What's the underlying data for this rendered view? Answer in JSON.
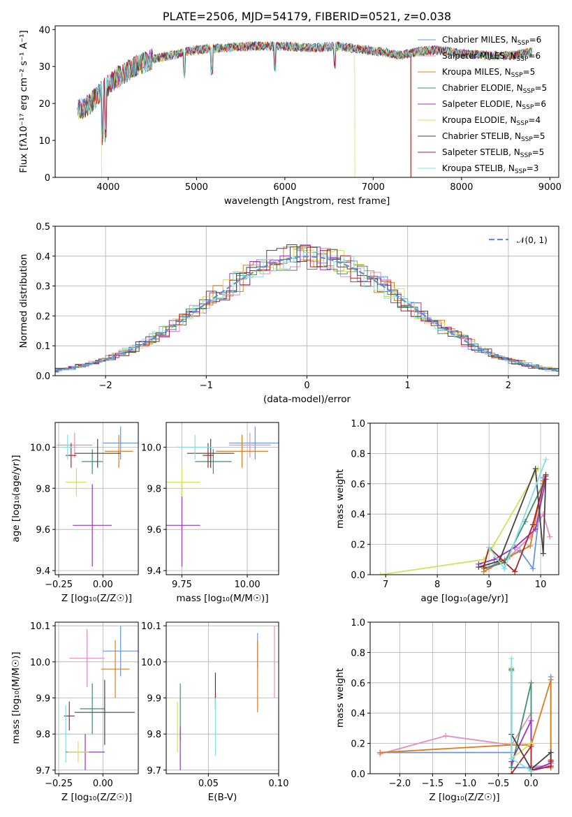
{
  "chart_data": [
    {
      "type": "line",
      "title": "PLATE=2506, MJD=54179, FIBERID=0521, z=0.038",
      "xlabel": "wavelength [Angstrom, rest frame]",
      "ylabel": "Flux [fλ10⁻¹⁷ erg cm⁻² s⁻¹ A⁻¹]",
      "xlim": [
        3400,
        9100
      ],
      "ylim": [
        0,
        41
      ],
      "xticks": [
        4000,
        5000,
        6000,
        7000,
        8000,
        9000
      ],
      "yticks": [
        0,
        10,
        20,
        30,
        40
      ],
      "legend_position": "top-right",
      "series": [
        {
          "name": "Chabrier MILES, N_SSP=6",
          "color": "#6495ed"
        },
        {
          "name": "Salpeter MILES, N_SSP=6",
          "color": "#e98bbf"
        },
        {
          "name": "Kroupa MILES, N_SSP=5",
          "color": "#e07b1a"
        },
        {
          "name": "Chabrier ELODIE, N_SSP=5",
          "color": "#3f8f6a"
        },
        {
          "name": "Salpeter ELODIE, N_SSP=6",
          "color": "#9b30c4"
        },
        {
          "name": "Kroupa ELODIE, N_SSP=4",
          "color": "#d4e157"
        },
        {
          "name": "Chabrier STELIB, N_SSP=5",
          "color": "#444444"
        },
        {
          "name": "Salpeter STELIB, N_SSP=5",
          "color": "#b22222"
        },
        {
          "name": "Kroupa STELIB, N_SSP=3",
          "color": "#7fe0e6"
        }
      ],
      "continuum": {
        "wavelength": [
          3650,
          3800,
          3950,
          4100,
          4300,
          4500,
          4700,
          5000,
          5300,
          5600,
          6000,
          6300,
          6600,
          6900,
          7100,
          7300,
          7500,
          7700,
          8000,
          8300,
          8600,
          8800
        ],
        "flux": [
          18,
          20,
          24,
          27,
          30,
          32,
          33,
          34.5,
          35,
          35.5,
          35.5,
          35,
          35.5,
          34.5,
          34,
          33,
          34,
          34.5,
          33.5,
          33,
          33,
          34
        ]
      }
    },
    {
      "type": "bar",
      "title": "",
      "xlabel": "(data-model)/error",
      "ylabel": "Normed distribution",
      "xlim": [
        -2.5,
        2.5
      ],
      "ylim": [
        0,
        0.5
      ],
      "xticks": [
        -2,
        -1,
        0,
        1,
        2
      ],
      "yticks": [
        0.0,
        0.1,
        0.2,
        0.3,
        0.4,
        0.5
      ],
      "legend_position": "top-right",
      "legend": [
        "𝒩(0, 1)"
      ],
      "reference_curve": {
        "name": "𝒩(0, 1)",
        "color": "#5b8fd9",
        "mean": 0,
        "sigma": 1
      },
      "histogram_bin_width": 0.1,
      "histogram_series_colors": [
        "#6495ed",
        "#e98bbf",
        "#e07b1a",
        "#3f8f6a",
        "#9b30c4",
        "#d4e157",
        "#444444",
        "#b22222",
        "#7fe0e6"
      ]
    },
    {
      "type": "scatter",
      "xlabel": "Z [log₁₀(Z/Z☉)]",
      "ylabel": "age  [log₁₀(age/yr)]",
      "xlim": [
        -0.27,
        0.2
      ],
      "ylim": [
        9.38,
        10.12
      ],
      "xticks": [
        -0.25,
        0.0
      ],
      "yticks": [
        9.4,
        9.6,
        9.8,
        10.0
      ],
      "points": [
        {
          "color": "#6495ed",
          "x": 0.1,
          "y": 10.02,
          "xerr": 0.1,
          "yerr": 0.08
        },
        {
          "color": "#e98bbf",
          "x": -0.16,
          "y": 10.01,
          "xerr": 0.1,
          "yerr": 0.06
        },
        {
          "color": "#e07b1a",
          "x": 0.09,
          "y": 9.98,
          "xerr": 0.08,
          "yerr": 0.08
        },
        {
          "color": "#3f8f6a",
          "x": -0.06,
          "y": 9.93,
          "xerr": 0.06,
          "yerr": 0.06
        },
        {
          "color": "#9b30c4",
          "x": -0.06,
          "y": 9.62,
          "xerr": 0.11,
          "yerr": 0.2
        },
        {
          "color": "#d4e157",
          "x": -0.15,
          "y": 9.83,
          "xerr": 0.06,
          "yerr": 0.07
        },
        {
          "color": "#444444",
          "x": -0.03,
          "y": 9.97,
          "xerr": 0.13,
          "yerr": 0.07
        },
        {
          "color": "#b22222",
          "x": -0.18,
          "y": 9.96,
          "xerr": 0.03,
          "yerr": 0.06
        },
        {
          "color": "#7fe0e6",
          "x": -0.2,
          "y": 10.0,
          "xerr": 0.03,
          "yerr": 0.06
        }
      ]
    },
    {
      "type": "scatter",
      "xlabel": "mass [log₁₀(M/M☉)]",
      "ylabel": "",
      "xlim": [
        9.69,
        10.12
      ],
      "ylim": [
        9.38,
        10.12
      ],
      "xticks": [
        9.75,
        10.0
      ],
      "yticks": [
        9.4,
        9.6,
        9.8,
        10.0
      ],
      "points": [
        {
          "color": "#6495ed",
          "x": 10.03,
          "y": 10.02,
          "xerr": 0.1,
          "yerr": 0.08
        },
        {
          "color": "#e98bbf",
          "x": 10.01,
          "y": 10.01,
          "xerr": 0.08,
          "yerr": 0.06
        },
        {
          "color": "#e07b1a",
          "x": 9.98,
          "y": 9.98,
          "xerr": 0.1,
          "yerr": 0.08
        },
        {
          "color": "#3f8f6a",
          "x": 9.87,
          "y": 9.93,
          "xerr": 0.07,
          "yerr": 0.06
        },
        {
          "color": "#9b30c4",
          "x": 9.75,
          "y": 9.62,
          "xerr": 0.07,
          "yerr": 0.2
        },
        {
          "color": "#d4e157",
          "x": 9.75,
          "y": 9.83,
          "xerr": 0.07,
          "yerr": 0.07
        },
        {
          "color": "#444444",
          "x": 9.86,
          "y": 9.97,
          "xerr": 0.09,
          "yerr": 0.07
        },
        {
          "color": "#b22222",
          "x": 9.85,
          "y": 9.96,
          "xerr": 0.02,
          "yerr": 0.06
        },
        {
          "color": "#7fe0e6",
          "x": 9.8,
          "y": 10.0,
          "xerr": 0.07,
          "yerr": 0.06
        }
      ]
    },
    {
      "type": "line",
      "xlabel": "age  [log₁₀(age/yr)]",
      "ylabel": "mass weight",
      "xlim": [
        6.7,
        10.35
      ],
      "ylim": [
        0,
        1
      ],
      "xticks": [
        7,
        8,
        9,
        10
      ],
      "yticks": [
        0.0,
        0.2,
        0.4,
        0.6,
        0.8,
        1.0
      ],
      "series": [
        {
          "color": "#6495ed",
          "x": [
            9.0,
            9.3,
            9.6,
            9.85,
            10.05
          ],
          "y": [
            0.05,
            0.1,
            0.16,
            0.04,
            0.64
          ]
        },
        {
          "color": "#e98bbf",
          "x": [
            9.0,
            9.4,
            9.8,
            10.05,
            10.18
          ],
          "y": [
            0.04,
            0.12,
            0.25,
            0.4,
            0.25
          ]
        },
        {
          "color": "#e07b1a",
          "x": [
            8.9,
            9.4,
            9.8,
            10.05
          ],
          "y": [
            0.02,
            0.12,
            0.19,
            0.62
          ]
        },
        {
          "color": "#3f8f6a",
          "x": [
            8.9,
            9.3,
            9.7,
            10.05
          ],
          "y": [
            0.04,
            0.08,
            0.35,
            0.6
          ]
        },
        {
          "color": "#9b30c4",
          "x": [
            8.8,
            9.1,
            9.5,
            9.9,
            10.1
          ],
          "y": [
            0.07,
            0.1,
            0.18,
            0.3,
            0.63
          ]
        },
        {
          "color": "#d4e157",
          "x": [
            6.9,
            8.9,
            9.1,
            9.95
          ],
          "y": [
            0.0,
            0.1,
            0.2,
            0.7
          ]
        },
        {
          "color": "#444444",
          "x": [
            8.8,
            9.2,
            9.9,
            10.05,
            10.1
          ],
          "y": [
            0.05,
            0.09,
            0.7,
            0.14,
            0.65
          ]
        },
        {
          "color": "#b22222",
          "x": [
            8.9,
            9.0,
            9.5,
            9.85,
            10.1
          ],
          "y": [
            0.05,
            0.18,
            0.02,
            0.33,
            0.66
          ]
        },
        {
          "color": "#7fe0e6",
          "x": [
            9.0,
            9.3,
            10.1
          ],
          "y": [
            0.18,
            0.04,
            0.76
          ]
        }
      ]
    },
    {
      "type": "scatter",
      "xlabel": "Z [log₁₀(Z/Z☉)]",
      "ylabel": "mass [log₁₀(M/M☉)]",
      "xlim": [
        -0.27,
        0.2
      ],
      "ylim": [
        9.69,
        10.11
      ],
      "xticks": [
        -0.25,
        0.0
      ],
      "yticks": [
        9.7,
        9.8,
        9.9,
        10.0,
        10.1
      ],
      "points": [
        {
          "color": "#6495ed",
          "x": 0.1,
          "y": 10.03,
          "xerr": 0.1,
          "yerr": 0.07
        },
        {
          "color": "#e98bbf",
          "x": -0.09,
          "y": 10.01,
          "xerr": 0.1,
          "yerr": 0.08
        },
        {
          "color": "#e07b1a",
          "x": 0.07,
          "y": 9.98,
          "xerr": 0.08,
          "yerr": 0.08
        },
        {
          "color": "#3f8f6a",
          "x": -0.06,
          "y": 9.87,
          "xerr": 0.07,
          "yerr": 0.07
        },
        {
          "color": "#9b30c4",
          "x": -0.1,
          "y": 9.75,
          "xerr": 0.11,
          "yerr": 0.05
        },
        {
          "color": "#d4e157",
          "x": -0.14,
          "y": 9.75,
          "xerr": 0.06,
          "yerr": 0.03
        },
        {
          "color": "#444444",
          "x": 0.01,
          "y": 9.86,
          "xerr": 0.17,
          "yerr": 0.09
        },
        {
          "color": "#b22222",
          "x": -0.19,
          "y": 9.85,
          "xerr": 0.03,
          "yerr": 0.04
        },
        {
          "color": "#7fe0e6",
          "x": -0.21,
          "y": 9.8,
          "xerr": 0.03,
          "yerr": 0.08
        }
      ]
    },
    {
      "type": "scatter",
      "xlabel": "E(B-V)",
      "ylabel": "",
      "xlim": [
        0.02,
        0.1
      ],
      "ylim": [
        9.69,
        10.11
      ],
      "xticks": [
        0.05,
        0.1
      ],
      "yticks": [
        9.7,
        9.8,
        9.9,
        10.0,
        10.1
      ],
      "points": [
        {
          "color": "#6495ed",
          "x": 0.085,
          "y": 10.03,
          "yerr": 0.05
        },
        {
          "color": "#e98bbf",
          "x": 0.097,
          "y": 10.0,
          "yerr": 0.1
        },
        {
          "color": "#e07b1a",
          "x": 0.085,
          "y": 9.96,
          "yerr": 0.1
        },
        {
          "color": "#3f8f6a",
          "x": 0.03,
          "y": 9.86,
          "yerr": 0.08
        },
        {
          "color": "#9b30c4",
          "x": 0.03,
          "y": 9.76,
          "yerr": 0.06
        },
        {
          "color": "#d4e157",
          "x": 0.028,
          "y": 9.82,
          "yerr": 0.07
        },
        {
          "color": "#444444",
          "x": 0.055,
          "y": 9.92,
          "yerr": 0.05
        },
        {
          "color": "#b22222",
          "x": 0.055,
          "y": 9.9,
          "yerr": 0.01
        },
        {
          "color": "#7fe0e6",
          "x": 0.055,
          "y": 9.82,
          "yerr": 0.08
        }
      ]
    },
    {
      "type": "line",
      "xlabel": "Z [log₁₀(Z/Z☉)]",
      "ylabel": "mass weight",
      "xlim": [
        -2.45,
        0.42
      ],
      "ylim": [
        0,
        1
      ],
      "xticks": [
        -2.0,
        -1.5,
        -1.0,
        -0.5,
        0.0
      ],
      "yticks": [
        0.0,
        0.2,
        0.4,
        0.6,
        0.8,
        1.0
      ],
      "series": [
        {
          "color": "#6495ed",
          "x": [
            -2.3,
            -0.3,
            -0.3,
            0.0,
            0.3,
            0.3
          ],
          "y": [
            0.14,
            0.14,
            0.04,
            0.04,
            0.04,
            0.64
          ]
        },
        {
          "color": "#e98bbf",
          "x": [
            -2.3,
            -1.3,
            -0.3,
            0.0,
            0.0,
            0.3
          ],
          "y": [
            0.13,
            0.25,
            0.19,
            0.4,
            0.05,
            0.05
          ]
        },
        {
          "color": "#e07b1a",
          "x": [
            -2.3,
            -0.3,
            0.0,
            0.3,
            0.3
          ],
          "y": [
            0.14,
            0.19,
            0.19,
            0.62,
            0.04
          ]
        },
        {
          "color": "#3f8f6a",
          "x": [
            -0.3,
            -0.3,
            0.0,
            0.0
          ],
          "y": [
            0.68,
            0.04,
            0.6,
            0.02
          ]
        },
        {
          "color": "#9b30c4",
          "x": [
            -0.3,
            -0.3,
            0.0,
            0.0,
            0.3
          ],
          "y": [
            0.26,
            0.08,
            0.35,
            0.02,
            0.07
          ]
        },
        {
          "color": "#d4e157",
          "x": [
            -0.3,
            -0.3,
            0.0,
            0.0
          ],
          "y": [
            0.7,
            0.1,
            0.2,
            0.02
          ]
        },
        {
          "color": "#444444",
          "x": [
            -0.3,
            -0.3,
            0.0,
            0.3,
            0.3
          ],
          "y": [
            0.69,
            0.26,
            0.03,
            0.14,
            0.08
          ]
        },
        {
          "color": "#b22222",
          "x": [
            -0.3,
            0.0,
            0.0,
            0.3,
            0.3
          ],
          "y": [
            0.0,
            0.18,
            0.02,
            0.05,
            0.09
          ]
        },
        {
          "color": "#7fe0e6",
          "x": [
            -0.3,
            -0.3,
            0.0
          ],
          "y": [
            0.76,
            0.1,
            0.02
          ]
        }
      ]
    }
  ]
}
